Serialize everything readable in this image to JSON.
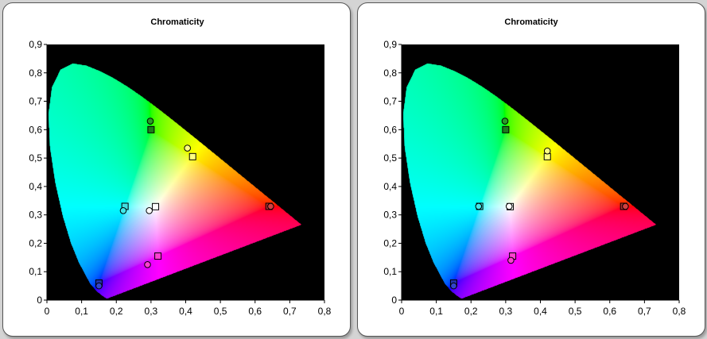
{
  "chart_data": [
    {
      "type": "scatter",
      "title": "Chromaticity",
      "xlabel": "",
      "ylabel": "",
      "xlim": [
        0,
        0.8
      ],
      "ylim": [
        0,
        0.9
      ],
      "xticks": [
        "0",
        "0,1",
        "0,2",
        "0,3",
        "0,4",
        "0,5",
        "0,6",
        "0,7",
        "0,8"
      ],
      "yticks": [
        "0",
        "0,1",
        "0,2",
        "0,3",
        "0,4",
        "0,5",
        "0,6",
        "0,7",
        "0,8",
        "0,9"
      ],
      "series": [
        {
          "marker": "square",
          "points": [
            {
              "x": 0.3,
              "y": 0.6,
              "color": "#1e7b1e"
            },
            {
              "x": 0.15,
              "y": 0.06,
              "color": "#2233aa"
            },
            {
              "x": 0.64,
              "y": 0.33,
              "color": "#b03030"
            },
            {
              "x": 0.225,
              "y": 0.33,
              "color": "#40e0e0"
            },
            {
              "x": 0.32,
              "y": 0.155,
              "color": "#ff40d0"
            },
            {
              "x": 0.42,
              "y": 0.505,
              "color": "#ffff80"
            },
            {
              "x": 0.313,
              "y": 0.329,
              "color": "#ffffff"
            }
          ]
        },
        {
          "marker": "circle",
          "points": [
            {
              "x": 0.298,
              "y": 0.63,
              "color": "#2a9a2a"
            },
            {
              "x": 0.15,
              "y": 0.05,
              "color": "#3344cc"
            },
            {
              "x": 0.645,
              "y": 0.33,
              "color": "#d04040"
            },
            {
              "x": 0.22,
              "y": 0.315,
              "color": "#40e8e8"
            },
            {
              "x": 0.29,
              "y": 0.125,
              "color": "#ff40d0"
            },
            {
              "x": 0.405,
              "y": 0.535,
              "color": "#ffff80"
            },
            {
              "x": 0.295,
              "y": 0.315,
              "color": "#ffffff"
            }
          ]
        }
      ]
    },
    {
      "type": "scatter",
      "title": "Chromaticity",
      "xlabel": "",
      "ylabel": "",
      "xlim": [
        0,
        0.8
      ],
      "ylim": [
        0,
        0.9
      ],
      "xticks": [
        "0",
        "0,1",
        "0,2",
        "0,3",
        "0,4",
        "0,5",
        "0,6",
        "0,7",
        "0,8"
      ],
      "yticks": [
        "0",
        "0,1",
        "0,2",
        "0,3",
        "0,4",
        "0,5",
        "0,6",
        "0,7",
        "0,8",
        "0,9"
      ],
      "series": [
        {
          "marker": "square",
          "points": [
            {
              "x": 0.3,
              "y": 0.6,
              "color": "#1e7b1e"
            },
            {
              "x": 0.15,
              "y": 0.06,
              "color": "#2233aa"
            },
            {
              "x": 0.64,
              "y": 0.33,
              "color": "#b03030"
            },
            {
              "x": 0.225,
              "y": 0.33,
              "color": "#40e0e0"
            },
            {
              "x": 0.32,
              "y": 0.155,
              "color": "#ff40d0"
            },
            {
              "x": 0.42,
              "y": 0.505,
              "color": "#ffff80"
            },
            {
              "x": 0.313,
              "y": 0.329,
              "color": "#ffffff"
            }
          ]
        },
        {
          "marker": "circle",
          "points": [
            {
              "x": 0.298,
              "y": 0.63,
              "color": "#2a9a2a"
            },
            {
              "x": 0.15,
              "y": 0.05,
              "color": "#3344cc"
            },
            {
              "x": 0.645,
              "y": 0.33,
              "color": "#d04040"
            },
            {
              "x": 0.222,
              "y": 0.33,
              "color": "#40e8e8"
            },
            {
              "x": 0.315,
              "y": 0.14,
              "color": "#ff40d0"
            },
            {
              "x": 0.42,
              "y": 0.525,
              "color": "#ffff80"
            },
            {
              "x": 0.31,
              "y": 0.33,
              "color": "#ffffff"
            }
          ]
        }
      ]
    }
  ]
}
